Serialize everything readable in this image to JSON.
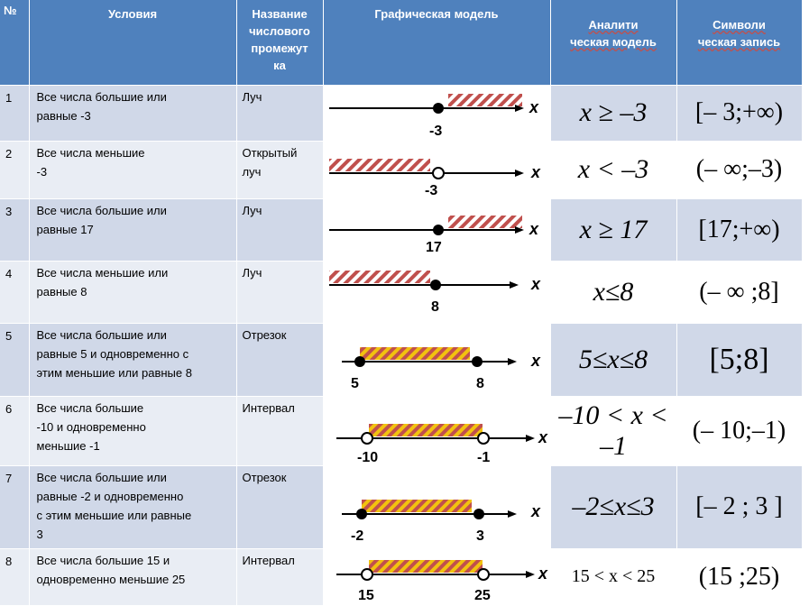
{
  "header": {
    "num": "№",
    "conditions": "Условия",
    "name_lines": [
      "Название",
      "числового",
      "промежут",
      "ка"
    ],
    "graph": "Графическая модель",
    "analytic_lines": [
      "Аналити",
      "ческая модель"
    ],
    "symbolic_lines": [
      "Символи",
      "ческая запись"
    ]
  },
  "rows": [
    {
      "num": "1",
      "conditions": [
        "Все числа большие или",
        "равные -3"
      ],
      "name": [
        "Луч"
      ],
      "graph": {
        "labels": [
          "-3"
        ],
        "axis": "x"
      },
      "analytic": "x ≥ –3",
      "symbolic": "[– 3;+∞)"
    },
    {
      "num": "2",
      "conditions": [
        "Все числа меньшие",
        " -3"
      ],
      "name": [
        "Открытый",
        "луч"
      ],
      "graph": {
        "labels": [
          "-3"
        ],
        "axis": "x"
      },
      "analytic": "x < –3",
      "symbolic": "(– ∞;–3)"
    },
    {
      "num": "3",
      "conditions": [
        "Все числа большие или",
        "равные 17"
      ],
      "name": [
        "Луч"
      ],
      "graph": {
        "labels": [
          "17"
        ],
        "axis": "x"
      },
      "analytic": "x ≥ 17",
      "symbolic": "[17;+∞)"
    },
    {
      "num": "4",
      "conditions": [
        "Все числа меньшие или",
        "равные 8"
      ],
      "name": [
        "Луч"
      ],
      "graph": {
        "labels": [
          "8"
        ],
        "axis": "x"
      },
      "analytic": "x≤8",
      "symbolic": "(– ∞ ;8]"
    },
    {
      "num": "5",
      "conditions": [
        "Все числа большие или",
        "равные 5 и одновременно с",
        "этим меньшие или равные 8"
      ],
      "name": [
        "Отрезок"
      ],
      "graph": {
        "labels": [
          "5",
          "8"
        ],
        "axis": "x"
      },
      "analytic": "5≤x≤8",
      "symbolic": "[5;8]"
    },
    {
      "num": "6",
      "conditions": [
        "Все числа большие",
        " -10 и одновременно",
        "меньшие -1"
      ],
      "name": [
        "Интервал"
      ],
      "graph": {
        "labels": [
          "-10",
          "-1"
        ],
        "axis": "x"
      },
      "analytic": "–10 < x < –1",
      "symbolic": "(– 10;–1)"
    },
    {
      "num": "7",
      "conditions": [
        "Все числа большие или",
        "равные -2 и одновременно",
        "с этим меньшие или равные",
        "3"
      ],
      "name": [
        "Отрезок"
      ],
      "graph": {
        "labels": [
          "-2",
          "3"
        ],
        "axis": "x"
      },
      "analytic": "–2≤x≤3",
      "symbolic": "[–  2 ; 3 ]"
    },
    {
      "num": "8",
      "conditions": [
        "Все числа большие 15  и",
        "одновременно меньшие 25"
      ],
      "name": [
        "Интервал"
      ],
      "graph": {
        "labels": [
          "15",
          "25"
        ],
        "axis": "x"
      },
      "analytic": "15 < x < 25",
      "symbolic": "(15 ;25)"
    }
  ],
  "colors": {
    "header": "#4f81bd",
    "row_odd": "#d0d8e8",
    "row_even": "#e9edf4",
    "hatch_red": "#c0504d",
    "hatch_yellow": "#f2c20f"
  }
}
